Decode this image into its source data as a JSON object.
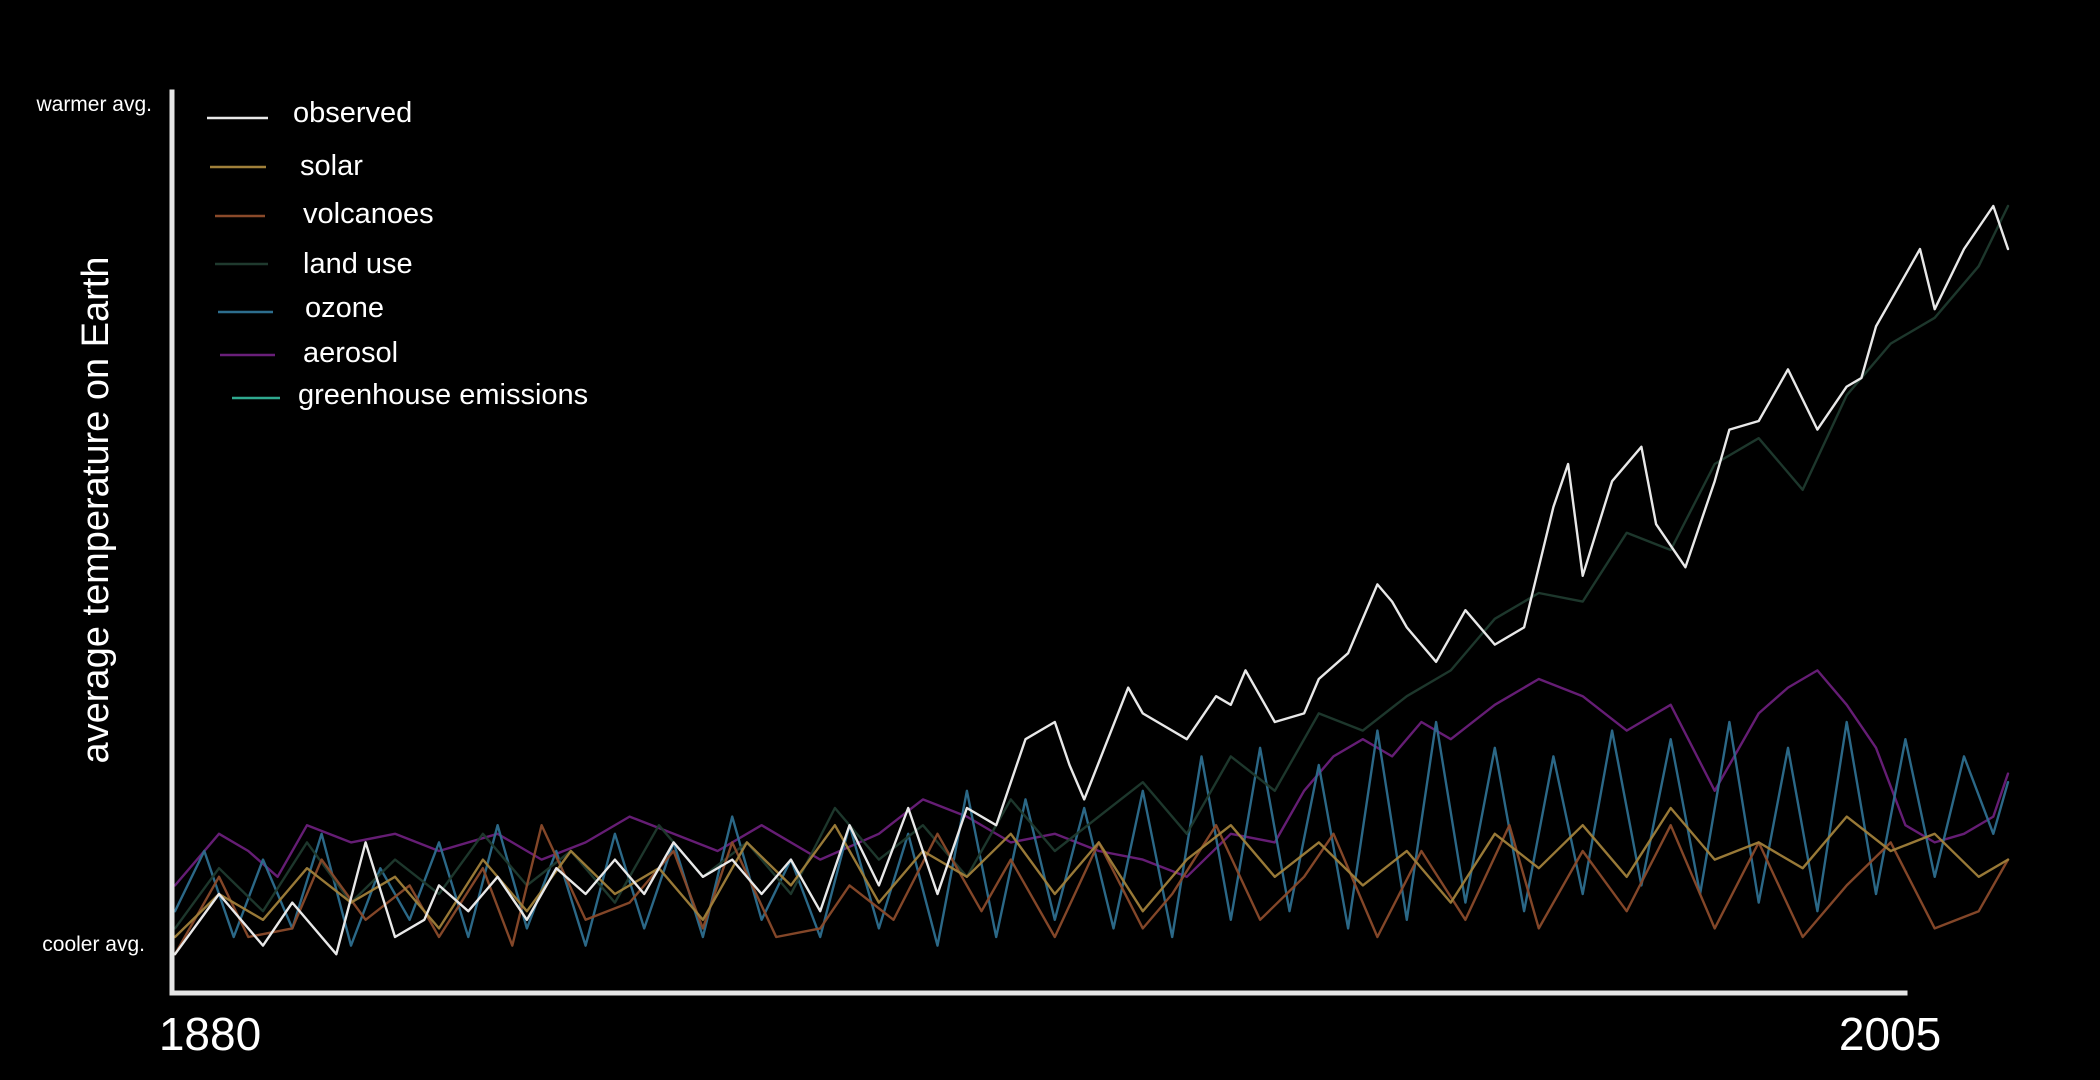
{
  "chart_data": {
    "type": "line",
    "title": "",
    "xlabel": "",
    "ylabel": "average temperature on Earth",
    "y_top_label": "warmer avg.",
    "y_bottom_label": "cooler avg.",
    "x_tick_labels": [
      "1880",
      "2005"
    ],
    "xlim": [
      1880,
      2005
    ],
    "ylim": [
      0,
      100
    ],
    "grid": false,
    "legend_position": "top-left",
    "series": [
      {
        "name": "observed",
        "color": "#e8e8e8",
        "x": [
          1880,
          1883,
          1886,
          1888,
          1891,
          1893,
          1895,
          1897,
          1898,
          1900,
          1902,
          1904,
          1906,
          1908,
          1910,
          1912,
          1914,
          1916,
          1918,
          1920,
          1922,
          1924,
          1926,
          1928,
          1930,
          1932,
          1934,
          1936,
          1938,
          1940,
          1941,
          1942,
          1945,
          1946,
          1949,
          1951,
          1952,
          1953,
          1955,
          1957,
          1958,
          1960,
          1962,
          1963,
          1964,
          1966,
          1968,
          1970,
          1972,
          1974,
          1975,
          1976,
          1978,
          1980,
          1981,
          1983,
          1985,
          1986,
          1988,
          1990,
          1992,
          1994,
          1995,
          1996,
          1998,
          1999,
          2000,
          2002,
          2004,
          2005
        ],
        "y": [
          3,
          10,
          4,
          9,
          3,
          16,
          5,
          7,
          11,
          8,
          12,
          7,
          13,
          10,
          14,
          10,
          16,
          12,
          14,
          10,
          14,
          8,
          18,
          11,
          20,
          10,
          20,
          18,
          28,
          30,
          25,
          21,
          34,
          31,
          28,
          33,
          32,
          36,
          30,
          31,
          35,
          38,
          46,
          44,
          41,
          37,
          43,
          39,
          41,
          55,
          60,
          47,
          58,
          62,
          53,
          48,
          58,
          64,
          65,
          71,
          64,
          69,
          70,
          76,
          82,
          85,
          78,
          85,
          90,
          85
        ]
      },
      {
        "name": "solar",
        "color": "#a0803a",
        "x": [
          1880,
          1883,
          1886,
          1889,
          1892,
          1895,
          1898,
          1901,
          1904,
          1907,
          1910,
          1913,
          1916,
          1919,
          1922,
          1925,
          1928,
          1931,
          1934,
          1937,
          1940,
          1943,
          1946,
          1949,
          1952,
          1955,
          1958,
          1961,
          1964,
          1967,
          1970,
          1973,
          1976,
          1979,
          1982,
          1985,
          1988,
          1991,
          1994,
          1997,
          2000,
          2003,
          2005
        ],
        "y": [
          5,
          10,
          7,
          13,
          9,
          12,
          6,
          14,
          8,
          15,
          10,
          13,
          7,
          16,
          11,
          18,
          9,
          15,
          12,
          17,
          10,
          16,
          8,
          14,
          18,
          12,
          16,
          11,
          15,
          9,
          17,
          13,
          18,
          12,
          20,
          14,
          16,
          13,
          19,
          15,
          17,
          12,
          14
        ]
      },
      {
        "name": "volcanoes",
        "color": "#8a4a2a",
        "x": [
          1880,
          1883,
          1885,
          1888,
          1890,
          1893,
          1896,
          1898,
          1901,
          1903,
          1905,
          1908,
          1911,
          1914,
          1916,
          1918,
          1921,
          1924,
          1926,
          1929,
          1932,
          1935,
          1937,
          1940,
          1943,
          1946,
          1948,
          1951,
          1954,
          1957,
          1959,
          1962,
          1965,
          1968,
          1971,
          1973,
          1976,
          1979,
          1982,
          1985,
          1988,
          1991,
          1994,
          1997,
          2000,
          2003,
          2005
        ],
        "y": [
          3,
          12,
          5,
          6,
          14,
          7,
          11,
          5,
          13,
          4,
          18,
          7,
          9,
          15,
          6,
          16,
          5,
          6,
          11,
          7,
          17,
          8,
          14,
          5,
          16,
          6,
          10,
          18,
          7,
          12,
          17,
          5,
          15,
          7,
          18,
          6,
          15,
          8,
          18,
          6,
          16,
          5,
          11,
          16,
          6,
          8,
          14
        ]
      },
      {
        "name": "land use",
        "color": "#1f3a2e",
        "x": [
          1880,
          1883,
          1886,
          1889,
          1892,
          1895,
          1898,
          1901,
          1904,
          1907,
          1910,
          1913,
          1916,
          1919,
          1922,
          1925,
          1928,
          1931,
          1934,
          1937,
          1940,
          1943,
          1946,
          1949,
          1952,
          1955,
          1958,
          1961,
          1964,
          1967,
          1970,
          1973,
          1976,
          1979,
          1982,
          1985,
          1988,
          1991,
          1994,
          1997,
          2000,
          2003,
          2005
        ],
        "y": [
          6,
          13,
          8,
          16,
          9,
          14,
          10,
          17,
          11,
          15,
          9,
          18,
          12,
          16,
          10,
          20,
          14,
          18,
          12,
          21,
          15,
          19,
          23,
          17,
          26,
          22,
          31,
          29,
          33,
          36,
          42,
          45,
          44,
          52,
          50,
          60,
          63,
          57,
          68,
          74,
          77,
          83,
          90
        ]
      },
      {
        "name": "ozone",
        "color": "#2d6e8e",
        "x": [
          1880,
          1882,
          1884,
          1886,
          1888,
          1890,
          1892,
          1894,
          1896,
          1898,
          1900,
          1902,
          1904,
          1906,
          1908,
          1910,
          1912,
          1914,
          1916,
          1918,
          1920,
          1922,
          1924,
          1926,
          1928,
          1930,
          1932,
          1934,
          1936,
          1938,
          1940,
          1942,
          1944,
          1946,
          1948,
          1950,
          1952,
          1954,
          1956,
          1958,
          1960,
          1962,
          1964,
          1966,
          1968,
          1970,
          1972,
          1974,
          1976,
          1978,
          1980,
          1982,
          1984,
          1986,
          1988,
          1990,
          1992,
          1994,
          1996,
          1998,
          2000,
          2002,
          2004,
          2005
        ],
        "y": [
          8,
          15,
          5,
          14,
          6,
          17,
          4,
          13,
          7,
          16,
          5,
          18,
          6,
          15,
          4,
          17,
          6,
          16,
          5,
          19,
          7,
          14,
          5,
          18,
          6,
          17,
          4,
          22,
          5,
          21,
          7,
          20,
          6,
          22,
          5,
          26,
          7,
          27,
          8,
          25,
          6,
          29,
          7,
          30,
          9,
          27,
          8,
          26,
          10,
          29,
          11,
          28,
          10,
          30,
          9,
          27,
          8,
          30,
          10,
          28,
          12,
          26,
          17,
          23
        ]
      },
      {
        "name": "aerosol",
        "color": "#6a1f7a",
        "x": [
          1880,
          1883,
          1885,
          1887,
          1889,
          1892,
          1895,
          1898,
          1902,
          1905,
          1908,
          1911,
          1914,
          1917,
          1920,
          1924,
          1928,
          1931,
          1934,
          1937,
          1940,
          1943,
          1946,
          1949,
          1952,
          1955,
          1957,
          1959,
          1961,
          1963,
          1965,
          1967,
          1970,
          1973,
          1976,
          1979,
          1982,
          1985,
          1988,
          1990,
          1992,
          1994,
          1996,
          1998,
          2000,
          2002,
          2004,
          2005
        ],
        "y": [
          11,
          17,
          15,
          12,
          18,
          16,
          17,
          15,
          17,
          14,
          16,
          19,
          17,
          15,
          18,
          14,
          17,
          21,
          19,
          16,
          17,
          15,
          14,
          12,
          17,
          16,
          22,
          26,
          28,
          26,
          30,
          28,
          32,
          35,
          33,
          29,
          32,
          22,
          31,
          34,
          36,
          32,
          27,
          18,
          16,
          17,
          19,
          24
        ]
      },
      {
        "name": "greenhouse emissions",
        "color": "#2fa98f",
        "x": [],
        "y": []
      }
    ]
  }
}
